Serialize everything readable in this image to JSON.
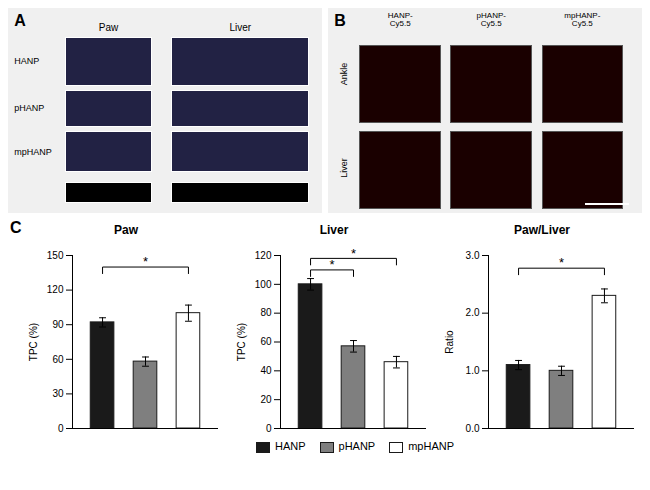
{
  "chart_data": [
    {
      "type": "image",
      "panel": "A",
      "columns": [
        "Paw",
        "Liver"
      ],
      "rows": [
        "HANP",
        "pHANP",
        "mpHANP"
      ]
    },
    {
      "type": "image",
      "panel": "B",
      "columns": [
        "HANP-\nCy5.5",
        "pHANP-\nCy5.5",
        "mpHANP-\nCy5.5"
      ],
      "rows": [
        "Ankle",
        "Liver"
      ]
    },
    {
      "type": "bar",
      "panel": "C",
      "title": "Paw",
      "ylabel": "TPC (%)",
      "categories": [
        "HANP",
        "pHANP",
        "mpHANP"
      ],
      "values": [
        92,
        58,
        100
      ],
      "errors": [
        4,
        4,
        7
      ],
      "colors": [
        "#1a1a1a",
        "#7f7f7f",
        "#ffffff"
      ],
      "edgecolor": "#1a1a1a",
      "ylim": [
        0,
        150
      ],
      "yticks": [
        0,
        30,
        60,
        90,
        120,
        150
      ],
      "tick_labels": "y",
      "legend": "bottom",
      "brackets": [
        {
          "from": "HANP",
          "to": "mpHANP",
          "y": 140,
          "label": "*"
        }
      ]
    },
    {
      "type": "bar",
      "title": "Liver",
      "ylabel": "TPC (%)",
      "categories": [
        "HANP",
        "pHANP",
        "mpHANP"
      ],
      "values": [
        100,
        57,
        46
      ],
      "errors": [
        4,
        4,
        4
      ],
      "colors": [
        "#1a1a1a",
        "#7f7f7f",
        "#ffffff"
      ],
      "edgecolor": "#1a1a1a",
      "ylim": [
        0,
        120
      ],
      "yticks": [
        0,
        20,
        40,
        60,
        80,
        100,
        120
      ],
      "tick_labels": "y",
      "brackets": [
        {
          "from": "HANP",
          "to": "pHANP",
          "y": 110,
          "label": "*"
        },
        {
          "from": "HANP",
          "to": "mpHANP",
          "y": 118,
          "label": "*"
        }
      ]
    },
    {
      "type": "bar",
      "title": "Paw/Liver",
      "ylabel": "Ratio",
      "categories": [
        "HANP",
        "pHANP",
        "mpHANP"
      ],
      "values": [
        1.1,
        1.0,
        2.3
      ],
      "errors": [
        0.08,
        0.08,
        0.12
      ],
      "colors": [
        "#1a1a1a",
        "#7f7f7f",
        "#ffffff"
      ],
      "edgecolor": "#1a1a1a",
      "ylim": [
        0,
        3
      ],
      "yticks": [
        0,
        1,
        2,
        3
      ],
      "tick_labels": "y",
      "brackets": [
        {
          "from": "HANP",
          "to": "mpHANP",
          "y": 2.78,
          "label": "*"
        }
      ]
    }
  ]
}
